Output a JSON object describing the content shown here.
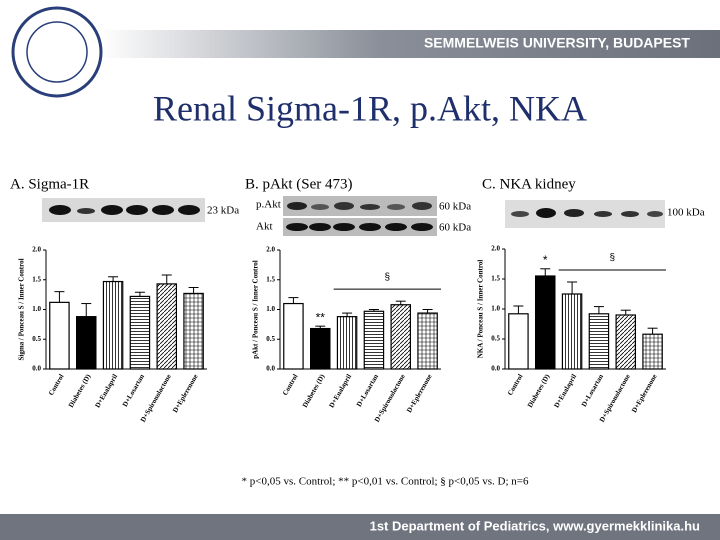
{
  "header": {
    "university": "SEMMELWEIS UNIVERSITY, BUDAPEST",
    "title": "Renal Sigma-1R, p.Akt, NKA"
  },
  "blots": {
    "a_kda": "23 kDa",
    "b_pakt": "p.Akt",
    "b_akt": "Akt",
    "b_kda1": "60 kDa",
    "b_kda2": "60 kDa",
    "c_kda": "100 kDa"
  },
  "chart_data": [
    {
      "type": "bar",
      "title": "A. Sigma-1R",
      "ylabel": "Sigma / Ponceau S / Inner Control",
      "categories": [
        "Control",
        "Diabetes (D)",
        "D+Enalapril",
        "D+Losartan",
        "D+Spironolactone",
        "D+Eplerenone"
      ],
      "values": [
        1.12,
        0.88,
        1.47,
        1.22,
        1.43,
        1.27
      ],
      "errors": [
        0.18,
        0.22,
        0.08,
        0.07,
        0.15,
        0.1
      ],
      "ylim": [
        0,
        2
      ],
      "yticks": [
        {
          "value": 0,
          "label": "0.0"
        },
        0.5,
        {
          "value": 1,
          "label": "1.0"
        },
        1.5,
        {
          "value": 2,
          "label": "2.0"
        }
      ]
    },
    {
      "type": "bar",
      "title": "B. pAkt (Ser 473)",
      "ylabel": "pAkt / Ponceau S / Inner Control",
      "categories": [
        "Control",
        "Diabetes (D)",
        "D+Enalapril",
        "D+Losartan",
        "D+Spironolactone",
        "D+Eplerenone"
      ],
      "values": [
        1.1,
        0.68,
        0.88,
        0.97,
        1.08,
        0.94
      ],
      "errors": [
        0.1,
        0.04,
        0.06,
        0.03,
        0.06,
        0.06
      ],
      "markers": [
        null,
        "**",
        null,
        null,
        null,
        null
      ],
      "bracket_label": "§",
      "ylim": [
        0,
        2
      ],
      "yticks": [
        {
          "value": 0,
          "label": "0.0"
        },
        0.5,
        {
          "value": 1,
          "label": "1.0"
        },
        1.5,
        {
          "value": 2,
          "label": "2.0"
        }
      ]
    },
    {
      "type": "bar",
      "title": "C. NKA kidney",
      "ylabel": "NKA / Ponceau S / Inner Control",
      "categories": [
        "Control",
        "Diabetes (D)",
        "D+Enalapril",
        "D+Losartan",
        "D+Spironolactone",
        "D+Eplerenone"
      ],
      "values": [
        0.92,
        1.55,
        1.25,
        0.92,
        0.9,
        0.58
      ],
      "errors": [
        0.13,
        0.12,
        0.2,
        0.12,
        0.08,
        0.1
      ],
      "markers": [
        null,
        "*",
        null,
        null,
        null,
        null
      ],
      "bracket_label": "§",
      "ylim": [
        0,
        2
      ],
      "yticks": [
        {
          "value": 0,
          "label": "0.0"
        },
        0.5,
        {
          "value": 1,
          "label": "1.0"
        },
        1.5,
        {
          "value": 2,
          "label": "2.0"
        }
      ]
    }
  ],
  "footnote": "* p<0,05 vs. Control; ** p<0,01 vs. Control; § p<0,05 vs. D; n=6",
  "footer": "1st Department of Pediatrics, www.gyermekklinika.hu"
}
